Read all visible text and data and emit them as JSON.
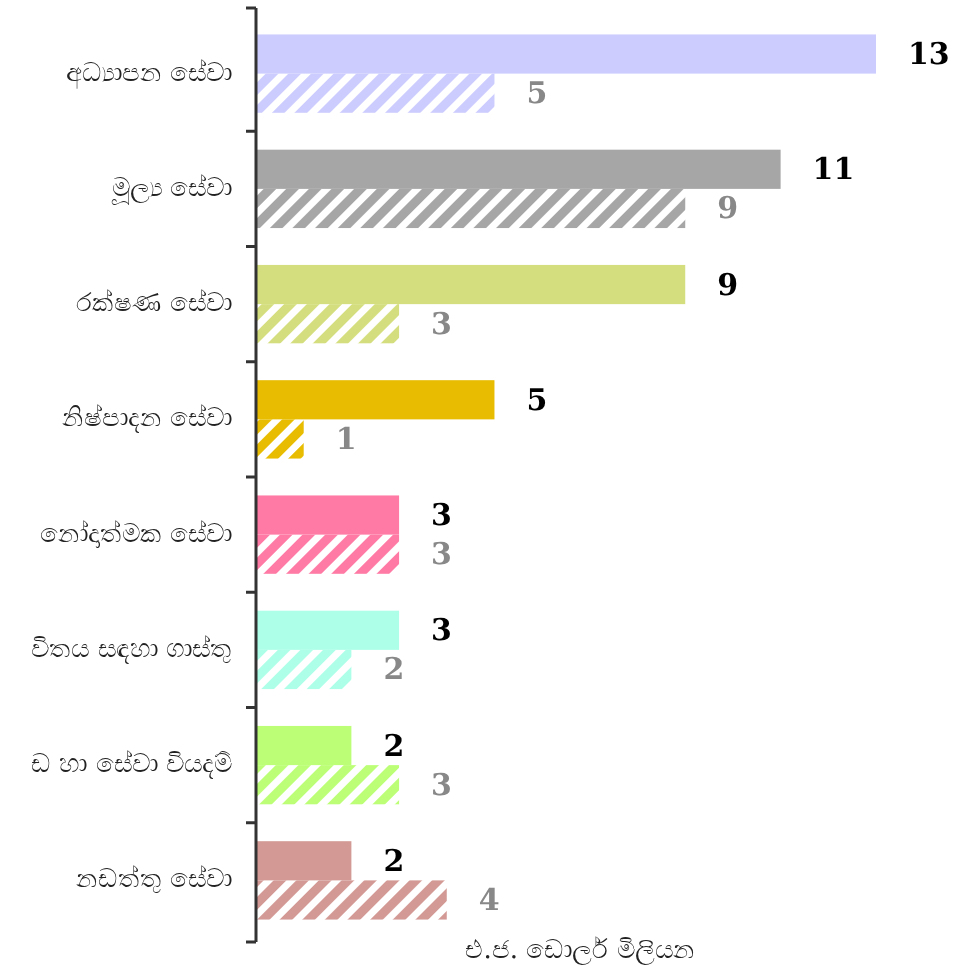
{
  "chart_data": {
    "type": "bar",
    "orientation": "horizontal",
    "xlabel": "එ.ජ. ඩොලර් මිලියන",
    "categories": [
      "අධ්‍යාපන සේවා",
      "මූල්‍ය සේවා",
      "රක්ෂණ සේවා",
      "නිෂ්පාදන සේවා",
      "නෝදාත්මක සේවා",
      "විතය සඳහා ගාස්තු",
      "ඩ හා සේවා වියදම්",
      "නඩත්තු සේවා"
    ],
    "series": [
      {
        "colors": [
          "#ccccff",
          "#a6a6a6",
          "#d5de7e",
          "#e8bc00",
          "#ff7ba5",
          "#aeffe8",
          "#bcff77",
          "#d39a95"
        ],
        "values": [
          13,
          11,
          9,
          5,
          3,
          3,
          2,
          2
        ]
      },
      {
        "colors": [
          "#ccccff",
          "#a6a6a6",
          "#d5de7e",
          "#e8bc00",
          "#ff7ba5",
          "#aeffe8",
          "#bcff77",
          "#d39a95"
        ],
        "values": [
          5,
          9,
          3,
          1,
          3,
          2,
          3,
          4
        ]
      }
    ],
    "data_labels": true
  }
}
